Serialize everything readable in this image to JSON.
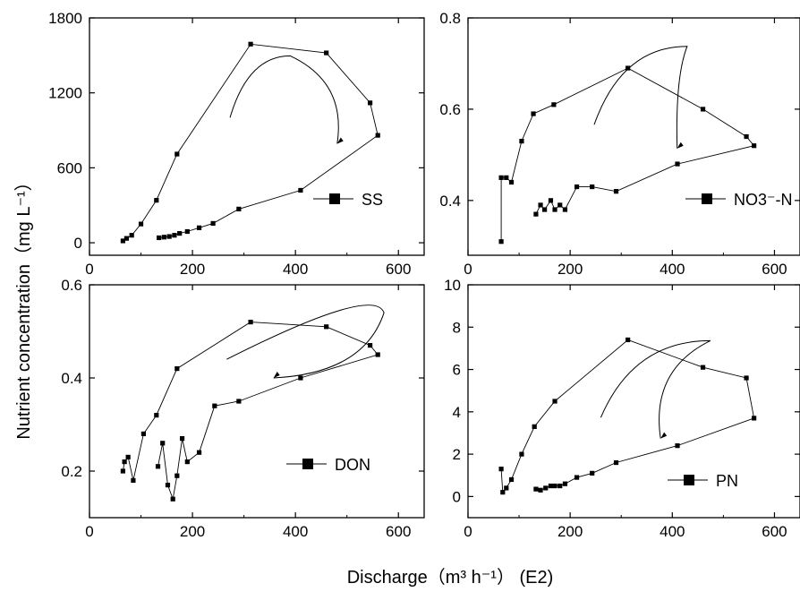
{
  "figure": {
    "ylabel": "Nutrient concentration（mg L⁻¹）",
    "xlabel": "Discharge（m³ h⁻¹）  (E2)"
  },
  "chart_data": [
    {
      "type": "line",
      "name": "SS",
      "legend": "SS",
      "legend_pos": "right",
      "xlim": [
        0,
        650
      ],
      "ylim": [
        -100,
        1800
      ],
      "xticks": [
        0,
        200,
        400,
        600
      ],
      "xtick_labels": [
        "0",
        "200",
        "400",
        "600"
      ],
      "yticks": [
        0,
        600,
        1200,
        1800
      ],
      "ytick_labels": [
        "0",
        "600",
        "1200",
        "1800"
      ],
      "x": [
        65,
        72,
        82,
        100,
        130,
        170,
        313,
        460,
        545,
        560,
        410,
        290,
        240,
        213,
        190,
        175,
        165,
        155,
        145,
        135
      ],
      "y": [
        15,
        35,
        60,
        150,
        340,
        710,
        1590,
        1520,
        1120,
        860,
        420,
        270,
        155,
        120,
        90,
        75,
        60,
        50,
        45,
        40
      ],
      "arrow_direction": "clockwise"
    },
    {
      "type": "line",
      "name": "NO3-N",
      "legend": "NO3⁻-N",
      "legend_pos": "right",
      "xlim": [
        0,
        650
      ],
      "ylim": [
        0.28,
        0.8
      ],
      "xticks": [
        0,
        200,
        400,
        600
      ],
      "xtick_labels": [
        "0",
        "200",
        "400",
        "600"
      ],
      "yticks": [
        0.4,
        0.6,
        0.8
      ],
      "ytick_labels": [
        "0.4",
        "0.6",
        "0.8"
      ],
      "x": [
        65,
        65,
        75,
        85,
        105,
        128,
        168,
        313,
        460,
        545,
        560,
        410,
        290,
        243,
        213,
        190,
        180,
        170,
        162,
        150,
        142,
        133
      ],
      "y": [
        0.31,
        0.45,
        0.45,
        0.44,
        0.53,
        0.59,
        0.61,
        0.69,
        0.6,
        0.54,
        0.52,
        0.48,
        0.42,
        0.43,
        0.43,
        0.38,
        0.39,
        0.38,
        0.4,
        0.38,
        0.39,
        0.37
      ],
      "arrow_direction": "clockwise"
    },
    {
      "type": "line",
      "name": "DON",
      "legend": "DON",
      "legend_pos": "right",
      "xlim": [
        0,
        650
      ],
      "ylim": [
        0.1,
        0.6
      ],
      "xticks": [
        0,
        200,
        400,
        600
      ],
      "xtick_labels": [
        "0",
        "200",
        "400",
        "600"
      ],
      "yticks": [
        0.2,
        0.4,
        0.6
      ],
      "ytick_labels": [
        "0.2",
        "0.4",
        "0.6"
      ],
      "x": [
        65,
        68,
        75,
        85,
        105,
        130,
        170,
        313,
        460,
        545,
        560,
        410,
        290,
        243,
        213,
        190,
        180,
        170,
        162,
        152,
        142,
        133
      ],
      "y": [
        0.2,
        0.22,
        0.23,
        0.18,
        0.28,
        0.32,
        0.42,
        0.52,
        0.51,
        0.47,
        0.45,
        0.4,
        0.35,
        0.34,
        0.24,
        0.22,
        0.27,
        0.19,
        0.14,
        0.17,
        0.26,
        0.21
      ],
      "arrow_direction": "counter-clockwise"
    },
    {
      "type": "line",
      "name": "PN",
      "legend": "PN",
      "legend_pos": "right",
      "xlim": [
        0,
        650
      ],
      "ylim": [
        -1,
        10
      ],
      "xticks": [
        0,
        200,
        400,
        600
      ],
      "xtick_labels": [
        "0",
        "200",
        "400",
        "600"
      ],
      "yticks": [
        0,
        2,
        4,
        6,
        8,
        10
      ],
      "ytick_labels": [
        "0",
        "2",
        "4",
        "6",
        "8",
        "10"
      ],
      "x": [
        65,
        68,
        75,
        85,
        105,
        130,
        170,
        313,
        460,
        545,
        560,
        410,
        290,
        243,
        213,
        190,
        180,
        170,
        162,
        152,
        142,
        133
      ],
      "y": [
        1.3,
        0.2,
        0.4,
        0.8,
        2.0,
        3.3,
        4.5,
        7.4,
        6.1,
        5.6,
        3.7,
        2.4,
        1.6,
        1.1,
        0.9,
        0.6,
        0.5,
        0.5,
        0.5,
        0.4,
        0.3,
        0.35
      ],
      "arrow_direction": "clockwise"
    }
  ]
}
